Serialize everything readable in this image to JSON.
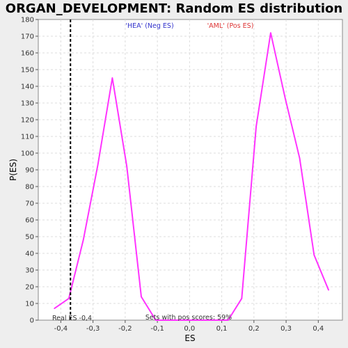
{
  "chart_data": {
    "type": "line",
    "title": "ORGAN_DEVELOPMENT: Random ES distribution",
    "xlabel": "ES",
    "ylabel": "P(ES)",
    "xlim": [
      -0.47,
      0.475
    ],
    "ylim": [
      0,
      180
    ],
    "x_ticks": [
      -0.4,
      -0.3,
      -0.2,
      -0.1,
      0.0,
      0.1,
      0.2,
      0.3,
      0.4
    ],
    "x_tick_labels": [
      "-0,4",
      "-0,3",
      "-0,2",
      "-0,1",
      "0,0",
      "0,1",
      "0,2",
      "0,3",
      "0,4"
    ],
    "y_ticks": [
      0,
      10,
      20,
      30,
      40,
      50,
      60,
      70,
      80,
      90,
      100,
      110,
      120,
      130,
      140,
      150,
      160,
      170,
      180
    ],
    "grid": true,
    "series": [
      {
        "color": "#ff33ff",
        "points": [
          {
            "x": -0.42,
            "y": 7
          },
          {
            "x": -0.375,
            "y": 13
          },
          {
            "x": -0.33,
            "y": 48
          },
          {
            "x": -0.285,
            "y": 93
          },
          {
            "x": -0.24,
            "y": 145
          },
          {
            "x": -0.195,
            "y": 92
          },
          {
            "x": -0.15,
            "y": 14
          },
          {
            "x": -0.105,
            "y": 0
          },
          {
            "x": -0.06,
            "y": 0
          },
          {
            "x": 0.0,
            "y": 0
          },
          {
            "x": 0.06,
            "y": 0
          },
          {
            "x": 0.12,
            "y": 0
          },
          {
            "x": 0.162,
            "y": 13
          },
          {
            "x": 0.207,
            "y": 116
          },
          {
            "x": 0.252,
            "y": 172
          },
          {
            "x": 0.297,
            "y": 133
          },
          {
            "x": 0.342,
            "y": 97
          },
          {
            "x": 0.387,
            "y": 39
          },
          {
            "x": 0.432,
            "y": 18
          }
        ]
      }
    ],
    "real_es": {
      "x": -0.37,
      "label": "Real ES -0,4"
    },
    "annotations": {
      "neg_label": "'HEA' (Neg ES)",
      "pos_label": "'AML' (Pos ES)",
      "sets_label": "Sets with pos scores: 59%"
    },
    "colors": {
      "line": "#ff33ff",
      "neg": "#3333cc",
      "pos": "#dd3333",
      "grid": "#dddddd"
    }
  }
}
